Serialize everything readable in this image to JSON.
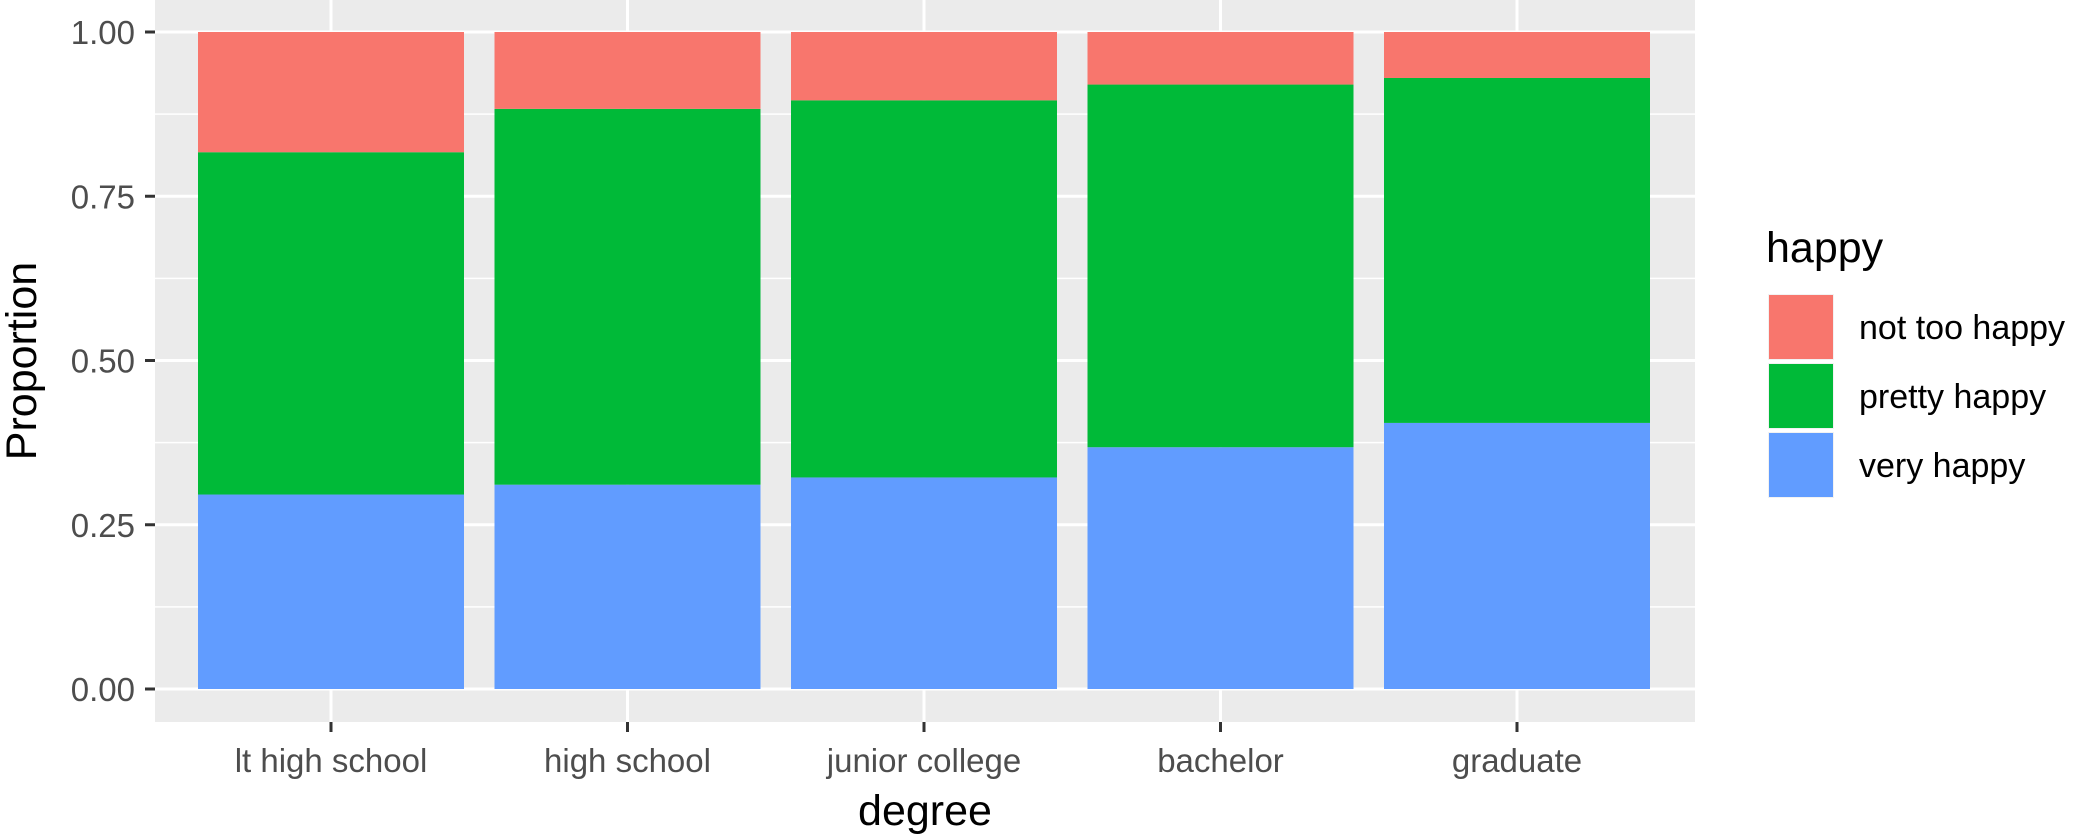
{
  "chart_data": {
    "type": "bar",
    "stacked": true,
    "categories": [
      "lt high school",
      "high school",
      "junior college",
      "bachelor",
      "graduate"
    ],
    "series": [
      {
        "name": "very happy",
        "color": "#619CFF",
        "values": [
          0.296,
          0.311,
          0.322,
          0.368,
          0.405
        ]
      },
      {
        "name": "pretty happy",
        "color": "#00BA38",
        "values": [
          0.521,
          0.572,
          0.574,
          0.552,
          0.525
        ]
      },
      {
        "name": "not too happy",
        "color": "#F8766D",
        "values": [
          0.183,
          0.117,
          0.104,
          0.08,
          0.07
        ]
      }
    ],
    "xlabel": "degree",
    "ylabel": "Proportion",
    "ylim": [
      0,
      1
    ],
    "yticks": [
      0,
      0.25,
      0.5,
      0.75,
      1
    ],
    "ytick_labels": [
      "0.00",
      "0.25",
      "0.50",
      "0.75",
      "1.00"
    ],
    "grid": true,
    "legend": {
      "title": "happy",
      "position": "right",
      "entries": [
        "not too happy",
        "pretty happy",
        "very happy"
      ]
    }
  },
  "colors": {
    "panel_background": "#EBEBEB",
    "grid_line": "#FFFFFF",
    "tick_text": "#4D4D4D",
    "tick_mark": "#333333"
  }
}
